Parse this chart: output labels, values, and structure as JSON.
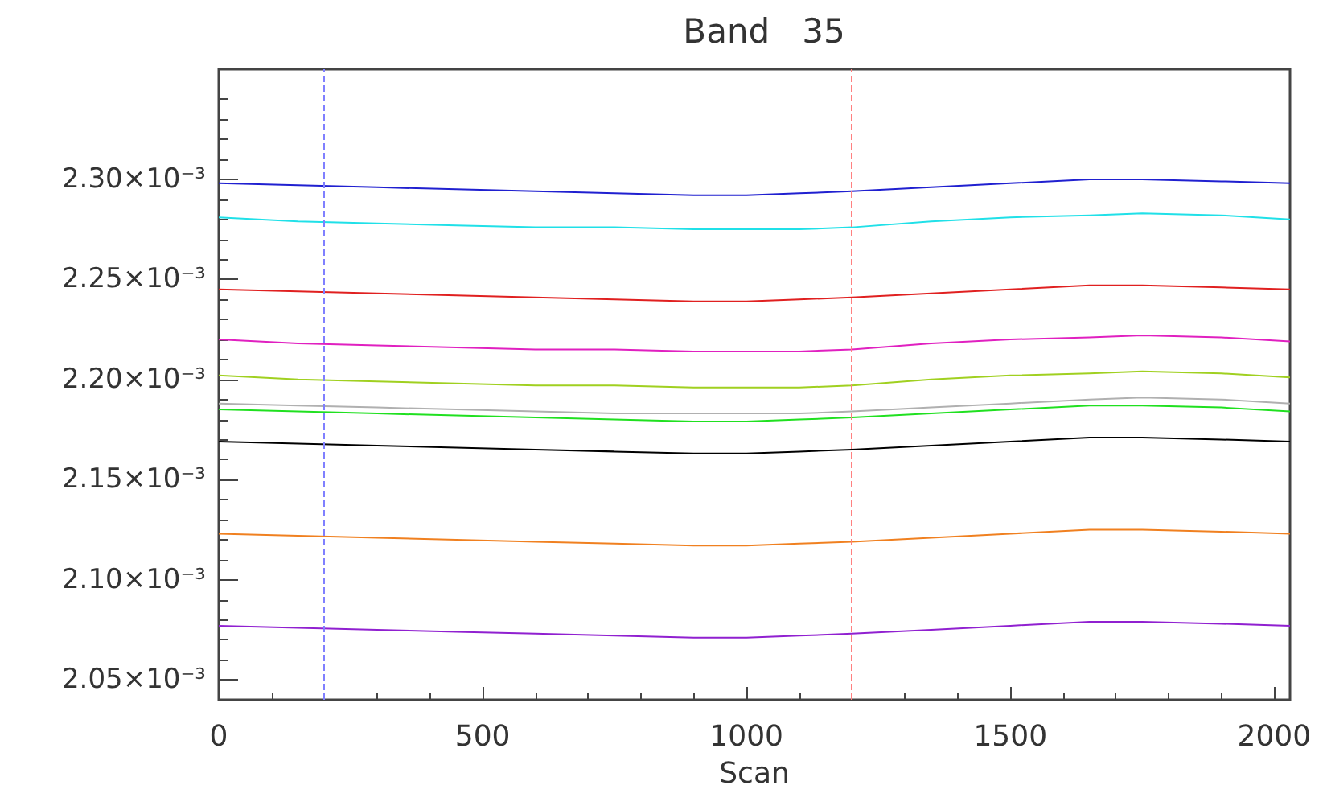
{
  "chart_data": {
    "type": "line",
    "title": "Band   35",
    "xlabel": "Scan",
    "x": [
      0,
      150,
      300,
      450,
      600,
      750,
      900,
      1000,
      1100,
      1200,
      1350,
      1500,
      1650,
      1750,
      1900,
      2030
    ],
    "series": [
      {
        "color": "#2020d0",
        "values": [
          0.002298,
          0.002297,
          0.002296,
          0.002295,
          0.002294,
          0.002293,
          0.002292,
          0.002292,
          0.002293,
          0.002294,
          0.002296,
          0.002298,
          0.0023,
          0.0023,
          0.002299,
          0.002298
        ]
      },
      {
        "color": "#20e0e8",
        "values": [
          0.002281,
          0.002279,
          0.002278,
          0.002277,
          0.002276,
          0.002276,
          0.002275,
          0.002275,
          0.002275,
          0.002276,
          0.002279,
          0.002281,
          0.002282,
          0.002283,
          0.002282,
          0.00228
        ]
      },
      {
        "color": "#e02020",
        "values": [
          0.002245,
          0.002244,
          0.002243,
          0.002242,
          0.002241,
          0.00224,
          0.002239,
          0.002239,
          0.00224,
          0.002241,
          0.002243,
          0.002245,
          0.002247,
          0.002247,
          0.002246,
          0.002245
        ]
      },
      {
        "color": "#e020c0",
        "values": [
          0.00222,
          0.002218,
          0.002217,
          0.002216,
          0.002215,
          0.002215,
          0.002214,
          0.002214,
          0.002214,
          0.002215,
          0.002218,
          0.00222,
          0.002221,
          0.002222,
          0.002221,
          0.002219
        ]
      },
      {
        "color": "#a0d020",
        "values": [
          0.002202,
          0.0022,
          0.002199,
          0.002198,
          0.002197,
          0.002197,
          0.002196,
          0.002196,
          0.002196,
          0.002197,
          0.0022,
          0.002202,
          0.002203,
          0.002204,
          0.002203,
          0.002201
        ]
      },
      {
        "color": "#b0b0b0",
        "values": [
          0.002188,
          0.002187,
          0.002186,
          0.002185,
          0.002184,
          0.002183,
          0.002183,
          0.002183,
          0.002183,
          0.002184,
          0.002186,
          0.002188,
          0.00219,
          0.002191,
          0.00219,
          0.002188
        ]
      },
      {
        "color": "#20e020",
        "values": [
          0.002185,
          0.002184,
          0.002183,
          0.002182,
          0.002181,
          0.00218,
          0.002179,
          0.002179,
          0.00218,
          0.002181,
          0.002183,
          0.002185,
          0.002187,
          0.002187,
          0.002186,
          0.002184
        ]
      },
      {
        "color": "#000000",
        "values": [
          0.002169,
          0.002168,
          0.002167,
          0.002166,
          0.002165,
          0.002164,
          0.002163,
          0.002163,
          0.002164,
          0.002165,
          0.002167,
          0.002169,
          0.002171,
          0.002171,
          0.00217,
          0.002169
        ]
      },
      {
        "color": "#f08020",
        "values": [
          0.002123,
          0.002122,
          0.002121,
          0.00212,
          0.002119,
          0.002118,
          0.002117,
          0.002117,
          0.002118,
          0.002119,
          0.002121,
          0.002123,
          0.002125,
          0.002125,
          0.002124,
          0.002123
        ]
      },
      {
        "color": "#9020d0",
        "values": [
          0.002077,
          0.002076,
          0.002075,
          0.002074,
          0.002073,
          0.002072,
          0.002071,
          0.002071,
          0.002072,
          0.002073,
          0.002075,
          0.002077,
          0.002079,
          0.002079,
          0.002078,
          0.002077
        ]
      }
    ],
    "xlim": [
      0,
      2030
    ],
    "xticks": [
      0,
      500,
      1000,
      1500,
      2000
    ],
    "ylim": [
      0.00204,
      0.002355
    ],
    "yticks": [
      {
        "value": 0.00205,
        "label": "2.05×10⁻³"
      },
      {
        "value": 0.0021,
        "label": "2.10×10⁻³"
      },
      {
        "value": 0.00215,
        "label": "2.15×10⁻³"
      },
      {
        "value": 0.0022,
        "label": "2.20×10⁻³"
      },
      {
        "value": 0.00225,
        "label": "2.25×10⁻³"
      },
      {
        "value": 0.0023,
        "label": "2.30×10⁻³"
      }
    ],
    "ref_lines": [
      {
        "axis": "x",
        "value": 200,
        "color": "#8080ff",
        "line_style": "dashed"
      },
      {
        "axis": "x",
        "value": 1200,
        "color": "#ff8080",
        "line_style": "dashed"
      }
    ],
    "grid": false,
    "marker": "none",
    "line_style": "solid"
  }
}
